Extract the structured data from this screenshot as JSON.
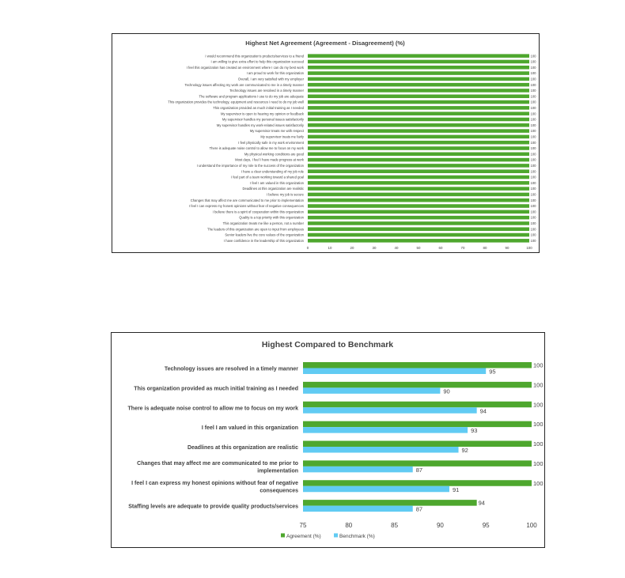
{
  "chart_data": [
    {
      "type": "bar",
      "orientation": "horizontal",
      "title": "Highest Net Agreement (Agreement - Disagreement) (%)",
      "categories": [
        "I would recommend this organization's products/services to a friend",
        "I am willing to give extra effort to help this organization succeed",
        "I feel this organization has created an environment where I can do my best work",
        "I am proud to work for this organization",
        "Overall, I am very satisfied with my employer",
        "Technology issues affecting my work are communicated to me in a timely manner",
        "Technology issues are resolved in a timely manner",
        "The software and program applications I use to do my job are adequate",
        "This organization provides the technology, equipment and resources I need to do my job well",
        "This organization provided as much initial training as I needed",
        "My supervisor is open to hearing my opinion or feedback",
        "My supervisor handles my personal issues satisfactorily",
        "My supervisor handles my work-related issues satisfactorily",
        "My supervisor treats me with respect",
        "My supervisor treats me fairly",
        "I feel physically safe in my work environment",
        "There is adequate noise control to allow me to focus on my work",
        "My physical working conditions are good",
        "Most days, I feel I have made progress at work",
        "I understand the importance of my role to the success of the organization",
        "I have a clear understanding of my job role",
        "I feel part of a team working toward a shared goal",
        "I feel I am valued in this organization",
        "Deadlines at this organization are realistic",
        "I believe my job is secure",
        "Changes that may affect me are communicated to me prior to implementation",
        "I feel I can express my honest opinions without fear of negative consequences",
        "I believe there is a spirit of cooperation within this organization",
        "Quality is a top priority with this organization",
        "This organization treats me like a person, not a number",
        "The leaders of this organization are open to input from employees",
        "Senior leaders live the core values of the organization",
        "I have confidence in the leadership of this organization"
      ],
      "values": [
        100,
        100,
        100,
        100,
        100,
        100,
        100,
        100,
        100,
        100,
        100,
        100,
        100,
        100,
        100,
        100,
        100,
        100,
        100,
        100,
        100,
        100,
        100,
        100,
        100,
        100,
        100,
        100,
        100,
        100,
        100,
        100,
        100
      ],
      "value_labels": [
        "100",
        "100",
        "100",
        "100",
        "100",
        "100",
        "100",
        "100",
        "100",
        "100",
        "100",
        "100",
        "100",
        "100",
        "100",
        "100",
        "100",
        "100",
        "100",
        "100",
        "100",
        "100",
        "100",
        "100",
        "100",
        "100",
        "100",
        "100",
        "100",
        "100",
        "100",
        "100",
        "100"
      ],
      "xlim": [
        0,
        100
      ],
      "xticks": [
        "0",
        "10",
        "20",
        "30",
        "40",
        "50",
        "60",
        "70",
        "80",
        "90",
        "100"
      ],
      "color": "#4ea72e",
      "grid": false,
      "legend": "none"
    },
    {
      "type": "bar",
      "orientation": "horizontal",
      "title": "Highest Compared to Benchmark",
      "categories": [
        [
          "Technology issues are resolved in a timely manner"
        ],
        [
          "This organization provided as much initial training as I needed"
        ],
        [
          "There is adequate noise control to allow me to focus on my work"
        ],
        [
          "I feel I am valued in this organization"
        ],
        [
          "Deadlines at this organization are realistic"
        ],
        [
          "Changes that may affect me are communicated to me prior to",
          "implementation"
        ],
        [
          "I feel I can express my honest opinions without fear of negative",
          "consequences"
        ],
        [
          "Staffing levels are adequate to provide quality products/services"
        ]
      ],
      "series": [
        {
          "name": "Agreement (%)",
          "color": "#4ea72e",
          "values": [
            100,
            100,
            100,
            100,
            100,
            100,
            100,
            94
          ],
          "labels": [
            "100",
            "100",
            "100",
            "100",
            "100",
            "100",
            "100",
            "94"
          ]
        },
        {
          "name": "Benchmark (%)",
          "color": "#61cbf3",
          "values": [
            95,
            90,
            94,
            93,
            92,
            87,
            91,
            87
          ],
          "labels": [
            "95",
            "90",
            "94",
            "93",
            "92",
            "87",
            "91",
            "87"
          ]
        }
      ],
      "xlim": [
        75,
        100
      ],
      "xticks": [
        "75",
        "80",
        "85",
        "90",
        "95",
        "100"
      ],
      "grid": false,
      "legend": "bottom"
    }
  ]
}
